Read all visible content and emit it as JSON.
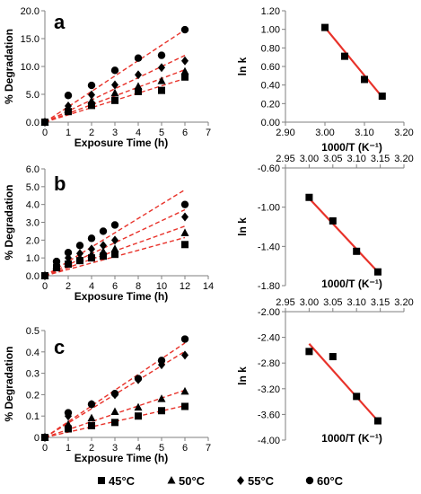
{
  "chart_data": [
    {
      "panel": "a",
      "type": "scatter",
      "xlabel": "Exposure Time (h)",
      "ylabel": "% Degradation",
      "xlim": [
        0,
        7
      ],
      "ylim": [
        0,
        20
      ],
      "xticks": [
        "0",
        "1",
        "2",
        "3",
        "4",
        "5",
        "6",
        "7"
      ],
      "yticks": [
        "0.0",
        "5.0",
        "10.0",
        "15.0",
        "20.0"
      ],
      "trendlines": "dashed linear fits through origin per series",
      "series": [
        {
          "name": "45°C",
          "marker": "square",
          "x": [
            0,
            1,
            2,
            3,
            4,
            5,
            6
          ],
          "y": [
            0,
            1.9,
            3.0,
            3.9,
            5.5,
            5.7,
            8.1
          ]
        },
        {
          "name": "50°C",
          "marker": "triangle",
          "x": [
            0,
            1,
            2,
            3,
            4,
            5,
            6
          ],
          "y": [
            0,
            2.3,
            3.8,
            5.2,
            6.4,
            7.4,
            9.1
          ]
        },
        {
          "name": "55°C",
          "marker": "diamond",
          "x": [
            0,
            1,
            2,
            3,
            4,
            5,
            6
          ],
          "y": [
            0,
            2.9,
            4.9,
            6.7,
            8.5,
            9.8,
            11.0
          ]
        },
        {
          "name": "60°C",
          "marker": "circle",
          "x": [
            0,
            1,
            2,
            3,
            4,
            5,
            6
          ],
          "y": [
            0,
            4.8,
            6.6,
            9.3,
            11.5,
            12.0,
            16.6
          ]
        }
      ]
    },
    {
      "panel": "",
      "type": "scatter",
      "xlabel": "1000/T (K⁻¹)",
      "ylabel": "ln k",
      "xlim": [
        2.9,
        3.2
      ],
      "ylim": [
        0.0,
        1.2
      ],
      "xticks": [
        "2.90",
        "3.00",
        "3.10",
        "3.20"
      ],
      "yticks": [
        "0.00",
        "0.20",
        "0.40",
        "0.60",
        "0.80",
        "1.00",
        "1.20"
      ],
      "series": [
        {
          "marker": "square",
          "x": [
            3.0,
            3.05,
            3.1,
            3.145
          ],
          "y": [
            1.02,
            0.71,
            0.46,
            0.28
          ]
        }
      ],
      "fit_line": {
        "x": [
          3.0,
          3.145
        ],
        "y": [
          1.02,
          0.27
        ]
      }
    },
    {
      "panel": "b",
      "type": "scatter",
      "xlabel": "Exposure Time (h)",
      "ylabel": "% Degradation",
      "xlim": [
        0,
        14
      ],
      "ylim": [
        0,
        6
      ],
      "xticks": [
        "0",
        "2",
        "4",
        "6",
        "8",
        "10",
        "12",
        "14"
      ],
      "yticks": [
        "0.0",
        "1.0",
        "2.0",
        "3.0",
        "4.0",
        "5.0",
        "6.0"
      ],
      "trendlines": "dashed linear fits through origin per series",
      "series": [
        {
          "name": "45°C",
          "marker": "square",
          "x": [
            0,
            1,
            2,
            3,
            4,
            5,
            6,
            12
          ],
          "y": [
            0,
            0.45,
            0.65,
            0.85,
            1.0,
            1.1,
            1.2,
            1.75
          ]
        },
        {
          "name": "50°C",
          "marker": "triangle",
          "x": [
            0,
            1,
            2,
            3,
            4,
            5,
            6,
            12
          ],
          "y": [
            0,
            0.55,
            0.8,
            1.0,
            1.2,
            1.35,
            1.5,
            2.4
          ]
        },
        {
          "name": "55°C",
          "marker": "diamond",
          "x": [
            0,
            1,
            2,
            3,
            4,
            5,
            6,
            12
          ],
          "y": [
            0,
            0.7,
            1.0,
            1.25,
            1.5,
            1.7,
            2.0,
            3.3
          ]
        },
        {
          "name": "60°C",
          "marker": "circle",
          "x": [
            0,
            1,
            2,
            3,
            4,
            5,
            6,
            12
          ],
          "y": [
            0,
            0.8,
            1.3,
            1.7,
            2.1,
            2.5,
            2.85,
            4.0
          ]
        }
      ]
    },
    {
      "panel": "",
      "type": "scatter",
      "xlabel": "1000/T (K⁻¹)",
      "ylabel": "ln k",
      "xlim": [
        2.95,
        3.2
      ],
      "ylim": [
        -1.8,
        -0.6
      ],
      "xticks": [
        "2.95",
        "3.00",
        "3.05",
        "3.10",
        "3.15",
        "3.20"
      ],
      "yticks": [
        "-0.60",
        "-1.00",
        "-1.40",
        "-1.80"
      ],
      "series": [
        {
          "marker": "square",
          "x": [
            3.0,
            3.05,
            3.1,
            3.145
          ],
          "y": [
            -0.9,
            -1.14,
            -1.45,
            -1.66
          ]
        }
      ],
      "fit_line": {
        "x": [
          3.0,
          3.145
        ],
        "y": [
          -0.91,
          -1.66
        ]
      }
    },
    {
      "panel": "c",
      "type": "scatter",
      "xlabel": "Exposure Time (h)",
      "ylabel": "% Degradation",
      "xlim": [
        0,
        7
      ],
      "ylim": [
        0,
        0.5
      ],
      "xticks": [
        "0",
        "1",
        "2",
        "3",
        "4",
        "5",
        "6",
        "7"
      ],
      "yticks": [
        "0",
        "0.1",
        "0.2",
        "0.3",
        "0.4",
        "0.5"
      ],
      "trendlines": "dashed linear fits through origin per series",
      "series": [
        {
          "name": "45°C",
          "marker": "square",
          "x": [
            0,
            1,
            2,
            3,
            4,
            5,
            6
          ],
          "y": [
            0,
            0.04,
            0.055,
            0.07,
            0.1,
            0.125,
            0.145
          ]
        },
        {
          "name": "50°C",
          "marker": "triangle",
          "x": [
            0,
            1,
            2,
            3,
            4,
            5,
            6
          ],
          "y": [
            0,
            0.06,
            0.09,
            0.12,
            0.14,
            0.18,
            0.215
          ]
        },
        {
          "name": "55°C",
          "marker": "diamond",
          "x": [
            0,
            1,
            2,
            3,
            4,
            5,
            6
          ],
          "y": [
            0,
            0.1,
            0.155,
            0.2,
            0.27,
            0.34,
            0.385
          ]
        },
        {
          "name": "60°C",
          "marker": "circle",
          "x": [
            0,
            1,
            2,
            3,
            4,
            5,
            6
          ],
          "y": [
            0,
            0.115,
            0.155,
            0.205,
            0.275,
            0.36,
            0.46
          ]
        }
      ]
    },
    {
      "panel": "",
      "type": "scatter",
      "xlabel": "1000/T (K⁻¹)",
      "ylabel": "ln k",
      "xlim": [
        2.95,
        3.2
      ],
      "ylim": [
        -4.0,
        -2.0
      ],
      "xticks": [
        "2.95",
        "3.00",
        "3.05",
        "3.10",
        "3.15",
        "3.20"
      ],
      "yticks": [
        "-2.00",
        "-2.40",
        "-2.80",
        "-3.20",
        "-3.60",
        "-4.00"
      ],
      "series": [
        {
          "marker": "square",
          "x": [
            3.0,
            3.05,
            3.1,
            3.145
          ],
          "y": [
            -2.62,
            -2.7,
            -3.32,
            -3.7
          ]
        }
      ],
      "fit_line": {
        "x": [
          3.0,
          3.145
        ],
        "y": [
          -2.5,
          -3.7
        ]
      }
    }
  ],
  "legend": {
    "placement": "bottom",
    "items": [
      {
        "label": "45°C",
        "marker": "square"
      },
      {
        "label": "50°C",
        "marker": "triangle"
      },
      {
        "label": "55°C",
        "marker": "diamond"
      },
      {
        "label": "60°C",
        "marker": "circle"
      }
    ]
  },
  "colors": {
    "markers": "#000000",
    "dashed_fits": "#e8322a",
    "solid_fit": "#e8322a",
    "axes": "#7f7f7f"
  }
}
